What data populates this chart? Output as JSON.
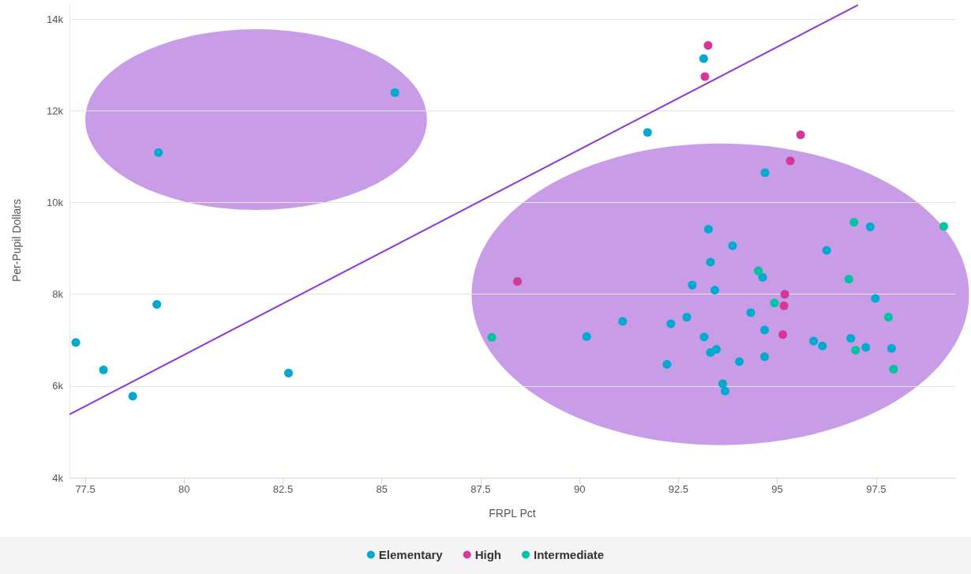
{
  "chart_data": {
    "type": "scatter",
    "xlabel": "FRPL Pct",
    "ylabel": "Per-Pupil Dollars",
    "xlim": [
      77.1,
      99.5
    ],
    "xticks": [
      77.5,
      80,
      82.5,
      85,
      87.5,
      90,
      92.5,
      95,
      97.5
    ],
    "ylim": [
      4000,
      14350
    ],
    "yticks": [
      {
        "value": 4000,
        "label": "4k"
      },
      {
        "value": 6000,
        "label": "6k"
      },
      {
        "value": 8000,
        "label": "8k"
      },
      {
        "value": 10000,
        "label": "10k"
      },
      {
        "value": 12000,
        "label": "12k"
      },
      {
        "value": 14000,
        "label": "14k"
      }
    ],
    "grid": "y",
    "legend": "bottom",
    "marker": "circle",
    "series": [
      {
        "name": "Elementary",
        "color": "#00a9cf",
        "x": [
          77.26,
          77.96,
          78.7,
          79.31,
          82.64,
          91.72,
          93.14,
          79.35,
          85.33,
          94.69,
          93.26,
          93.87,
          93.31,
          94.63,
          92.85,
          93.42,
          94.33,
          91.09,
          92.31,
          92.71,
          90.18,
          93.15,
          94.68,
          93.46,
          93.31,
          94.04,
          94.68,
          92.21,
          93.62,
          93.68,
          95.92,
          96.14,
          96.86,
          97.24,
          97.89,
          97.48,
          96.25,
          97.35
        ],
        "values": [
          6950,
          6350,
          5780,
          7780,
          6280,
          11530,
          13140,
          11090,
          12400,
          10650,
          9420,
          9060,
          8700,
          8370,
          8200,
          8090,
          7600,
          7410,
          7360,
          7500,
          7080,
          7070,
          7220,
          6800,
          6730,
          6530,
          6640,
          6470,
          6050,
          5890,
          6980,
          6870,
          7040,
          6840,
          6820,
          7910,
          8960,
          9470
        ]
      },
      {
        "name": "High",
        "color": "#d6359a",
        "x": [
          88.43,
          95.19,
          95.17,
          95.14,
          93.25,
          93.17,
          95.59,
          95.33
        ],
        "values": [
          8280,
          8000,
          7750,
          7120,
          13430,
          12750,
          11480,
          10910
        ]
      },
      {
        "name": "Intermediate",
        "color": "#00c4a0",
        "x": [
          94.52,
          94.93,
          87.78,
          96.98,
          97.94,
          97.81,
          96.81,
          96.94,
          99.21
        ],
        "values": [
          8510,
          7810,
          7060,
          6780,
          6370,
          7500,
          8330,
          9570,
          9480
        ]
      },
      {
        "type": "line",
        "marker": "none",
        "color": "#8e35d6",
        "x": [
          77.1,
          97.04
        ],
        "values": [
          5380,
          14310
        ]
      }
    ]
  }
}
